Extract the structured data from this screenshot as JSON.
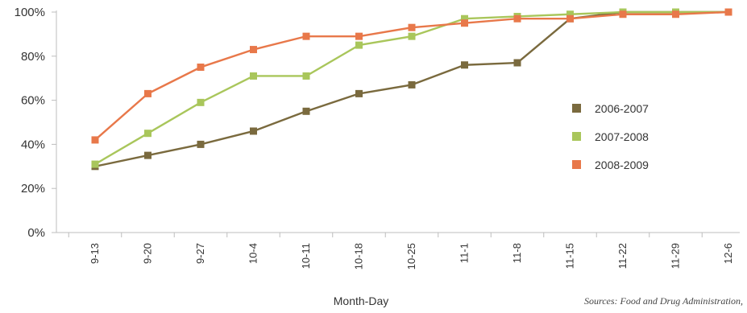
{
  "chart_data": {
    "type": "line",
    "categories": [
      "9-13",
      "9-20",
      "9-27",
      "10-4",
      "10-11",
      "10-18",
      "10-25",
      "11-1",
      "11-8",
      "11-15",
      "11-22",
      "11-29",
      "12-6"
    ],
    "y_tick_labels": [
      "0%",
      "20%",
      "40%",
      "60%",
      "80%",
      "100%"
    ],
    "y_ticks": [
      0,
      20,
      40,
      60,
      80,
      100
    ],
    "ylim": [
      0,
      100
    ],
    "xlabel": "Month-Day",
    "ylabel": "",
    "grid": false,
    "legend_position": "right",
    "series": [
      {
        "name": "2006-2007",
        "color": "#7a6a3e",
        "values": [
          30,
          35,
          40,
          46,
          55,
          63,
          67,
          76,
          77,
          97,
          100,
          100,
          100
        ]
      },
      {
        "name": "2007-2008",
        "color": "#a9c65b",
        "values": [
          31,
          45,
          59,
          71,
          71,
          85,
          89,
          97,
          98,
          99,
          100,
          100,
          100
        ]
      },
      {
        "name": "2008-2009",
        "color": "#e8784a",
        "values": [
          42,
          63,
          75,
          83,
          89,
          89,
          93,
          95,
          97,
          97,
          99,
          99,
          100
        ]
      }
    ],
    "source": "Sources: Food and Drug Administration,"
  }
}
